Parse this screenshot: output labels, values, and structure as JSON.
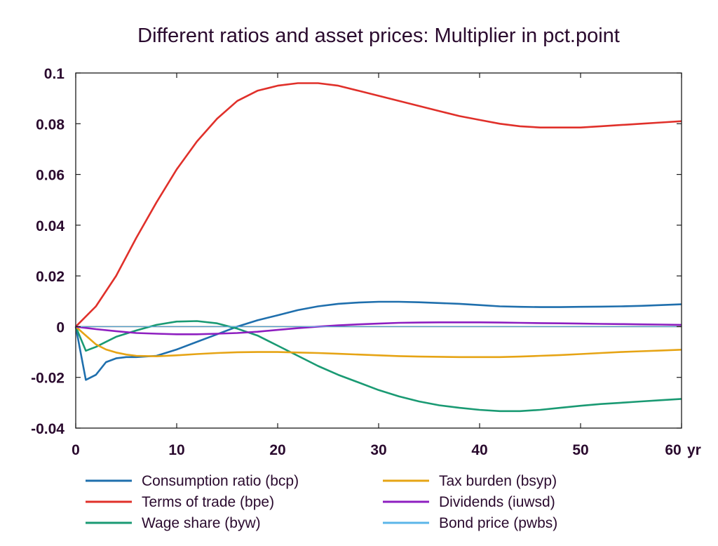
{
  "chart_data": {
    "type": "line",
    "title": "Different ratios and asset prices: Multiplier in pct.point",
    "xlabel": "",
    "ylabel": "",
    "x_unit_label": "yr",
    "xlim": [
      0,
      60
    ],
    "ylim": [
      -0.04,
      0.1
    ],
    "x_ticks": [
      0,
      10,
      20,
      30,
      40,
      50,
      60
    ],
    "x_tick_labels": [
      "0",
      "10",
      "20",
      "30",
      "40",
      "50",
      "60"
    ],
    "y_ticks": [
      -0.04,
      -0.02,
      0,
      0.02,
      0.04,
      0.06,
      0.08,
      0.1
    ],
    "y_tick_labels": [
      "-0.04",
      "-0.02",
      "0",
      "0.02",
      "0.04",
      "0.06",
      "0.08",
      "0.1"
    ],
    "grid": false,
    "legend_position": "bottom",
    "series": [
      {
        "name": "Consumption ratio (bcp)",
        "color": "#1f6fad",
        "points": [
          [
            0,
            0
          ],
          [
            1,
            -0.021
          ],
          [
            2,
            -0.019
          ],
          [
            3,
            -0.014
          ],
          [
            4,
            -0.0125
          ],
          [
            5,
            -0.012
          ],
          [
            6,
            -0.012
          ],
          [
            8,
            -0.0115
          ],
          [
            10,
            -0.009
          ],
          [
            12,
            -0.006
          ],
          [
            14,
            -0.003
          ],
          [
            16,
            0.0
          ],
          [
            18,
            0.0025
          ],
          [
            20,
            0.0045
          ],
          [
            22,
            0.0065
          ],
          [
            24,
            0.008
          ],
          [
            26,
            0.009
          ],
          [
            28,
            0.0095
          ],
          [
            30,
            0.0098
          ],
          [
            32,
            0.0098
          ],
          [
            34,
            0.0096
          ],
          [
            36,
            0.0093
          ],
          [
            38,
            0.009
          ],
          [
            40,
            0.0085
          ],
          [
            42,
            0.008
          ],
          [
            44,
            0.0078
          ],
          [
            46,
            0.0077
          ],
          [
            48,
            0.0077
          ],
          [
            50,
            0.0078
          ],
          [
            52,
            0.0079
          ],
          [
            54,
            0.008
          ],
          [
            56,
            0.0082
          ],
          [
            58,
            0.0085
          ],
          [
            60,
            0.0088
          ]
        ]
      },
      {
        "name": "Terms of trade (bpe)",
        "color": "#e0302a",
        "points": [
          [
            0,
            0
          ],
          [
            2,
            0.008
          ],
          [
            4,
            0.02
          ],
          [
            6,
            0.035
          ],
          [
            8,
            0.049
          ],
          [
            10,
            0.062
          ],
          [
            12,
            0.073
          ],
          [
            14,
            0.082
          ],
          [
            16,
            0.089
          ],
          [
            18,
            0.093
          ],
          [
            20,
            0.095
          ],
          [
            22,
            0.096
          ],
          [
            24,
            0.096
          ],
          [
            26,
            0.095
          ],
          [
            28,
            0.093
          ],
          [
            30,
            0.091
          ],
          [
            32,
            0.089
          ],
          [
            34,
            0.087
          ],
          [
            36,
            0.085
          ],
          [
            38,
            0.083
          ],
          [
            40,
            0.0815
          ],
          [
            42,
            0.08
          ],
          [
            44,
            0.079
          ],
          [
            46,
            0.0785
          ],
          [
            48,
            0.0785
          ],
          [
            50,
            0.0785
          ],
          [
            52,
            0.079
          ],
          [
            54,
            0.0795
          ],
          [
            56,
            0.08
          ],
          [
            58,
            0.0805
          ],
          [
            60,
            0.081
          ]
        ]
      },
      {
        "name": "Wage share (byw)",
        "color": "#1a9a73",
        "points": [
          [
            0,
            0
          ],
          [
            1,
            -0.0095
          ],
          [
            2,
            -0.008
          ],
          [
            3,
            -0.006
          ],
          [
            4,
            -0.004
          ],
          [
            6,
            -0.0015
          ],
          [
            8,
            0.0007
          ],
          [
            10,
            0.002
          ],
          [
            12,
            0.0022
          ],
          [
            14,
            0.0013
          ],
          [
            16,
            -0.0008
          ],
          [
            18,
            -0.0035
          ],
          [
            20,
            -0.0075
          ],
          [
            22,
            -0.0115
          ],
          [
            24,
            -0.0155
          ],
          [
            26,
            -0.019
          ],
          [
            28,
            -0.022
          ],
          [
            30,
            -0.025
          ],
          [
            32,
            -0.0275
          ],
          [
            34,
            -0.0295
          ],
          [
            36,
            -0.031
          ],
          [
            38,
            -0.032
          ],
          [
            40,
            -0.0328
          ],
          [
            42,
            -0.0333
          ],
          [
            44,
            -0.0333
          ],
          [
            46,
            -0.0328
          ],
          [
            48,
            -0.032
          ],
          [
            50,
            -0.0312
          ],
          [
            52,
            -0.0305
          ],
          [
            54,
            -0.03
          ],
          [
            56,
            -0.0295
          ],
          [
            58,
            -0.029
          ],
          [
            60,
            -0.0285
          ]
        ]
      },
      {
        "name": "Tax burden (bsyp)",
        "color": "#e6a415",
        "points": [
          [
            0,
            0
          ],
          [
            1,
            -0.0035
          ],
          [
            2,
            -0.007
          ],
          [
            3,
            -0.009
          ],
          [
            4,
            -0.0102
          ],
          [
            5,
            -0.011
          ],
          [
            6,
            -0.0115
          ],
          [
            8,
            -0.0117
          ],
          [
            10,
            -0.0113
          ],
          [
            12,
            -0.0108
          ],
          [
            14,
            -0.0104
          ],
          [
            16,
            -0.0101
          ],
          [
            18,
            -0.01
          ],
          [
            20,
            -0.01
          ],
          [
            22,
            -0.0102
          ],
          [
            24,
            -0.0104
          ],
          [
            26,
            -0.0107
          ],
          [
            28,
            -0.011
          ],
          [
            30,
            -0.0113
          ],
          [
            32,
            -0.0116
          ],
          [
            34,
            -0.0118
          ],
          [
            36,
            -0.0119
          ],
          [
            38,
            -0.012
          ],
          [
            40,
            -0.012
          ],
          [
            42,
            -0.012
          ],
          [
            44,
            -0.0118
          ],
          [
            46,
            -0.0115
          ],
          [
            48,
            -0.0112
          ],
          [
            50,
            -0.0108
          ],
          [
            52,
            -0.0104
          ],
          [
            54,
            -0.01
          ],
          [
            56,
            -0.0097
          ],
          [
            58,
            -0.0094
          ],
          [
            60,
            -0.0091
          ]
        ]
      },
      {
        "name": "Dividends (iuwsd)",
        "color": "#8e1fc0",
        "points": [
          [
            0,
            0
          ],
          [
            2,
            -0.001
          ],
          [
            4,
            -0.0018
          ],
          [
            6,
            -0.0025
          ],
          [
            8,
            -0.0028
          ],
          [
            10,
            -0.003
          ],
          [
            12,
            -0.003
          ],
          [
            14,
            -0.0028
          ],
          [
            16,
            -0.0025
          ],
          [
            18,
            -0.002
          ],
          [
            20,
            -0.0013
          ],
          [
            22,
            -0.0006
          ],
          [
            24,
            0.0
          ],
          [
            26,
            0.0005
          ],
          [
            28,
            0.0009
          ],
          [
            30,
            0.0012
          ],
          [
            32,
            0.0015
          ],
          [
            34,
            0.0016
          ],
          [
            36,
            0.0017
          ],
          [
            38,
            0.0017
          ],
          [
            40,
            0.0017
          ],
          [
            42,
            0.0016
          ],
          [
            44,
            0.0015
          ],
          [
            46,
            0.0014
          ],
          [
            48,
            0.0013
          ],
          [
            50,
            0.0012
          ],
          [
            52,
            0.0011
          ],
          [
            54,
            0.001
          ],
          [
            56,
            0.0009
          ],
          [
            58,
            0.0008
          ],
          [
            60,
            0.0007
          ]
        ]
      },
      {
        "name": "Bond price (pwbs)",
        "color": "#5bb6e8",
        "points": [
          [
            0,
            0
          ],
          [
            60,
            0
          ]
        ]
      }
    ]
  }
}
